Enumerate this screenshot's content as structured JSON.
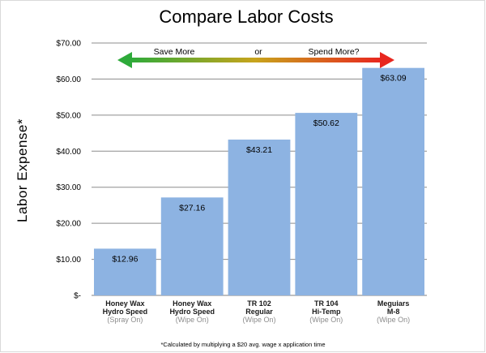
{
  "chart_data": {
    "type": "bar",
    "title": "Compare Labor Costs",
    "ylabel": "Labor Expense*",
    "xlabel": "",
    "ylim": [
      0,
      70
    ],
    "yticks": [
      0,
      10,
      20,
      30,
      40,
      50,
      60,
      70
    ],
    "ytick_labels": [
      "$-",
      "$10.00",
      "$20.00",
      "$30.00",
      "$40.00",
      "$50.00",
      "$60.00",
      "$70.00"
    ],
    "categories": [
      {
        "line1": "Honey Wax",
        "line2": "Hydro Speed",
        "method": "(Spray On)"
      },
      {
        "line1": "Honey Wax",
        "line2": "Hydro Speed",
        "method": "(Wipe On)"
      },
      {
        "line1": "TR 102",
        "line2": "Regular",
        "method": "(Wipe On)"
      },
      {
        "line1": "TR 104",
        "line2": "Hi-Temp",
        "method": "(Wipe On)"
      },
      {
        "line1": "Meguiars",
        "line2": "M-8",
        "method": "(Wipe On)"
      }
    ],
    "values": [
      12.96,
      27.16,
      43.21,
      50.62,
      63.09
    ],
    "data_labels": [
      "$12.96",
      "$27.16",
      "$43.21",
      "$50.62",
      "$63.09"
    ],
    "bar_color": "#8db3e2",
    "grid": "horizontal",
    "legend": "none",
    "annotation": {
      "left": "Save More",
      "middle": "or",
      "right": "Spend More?",
      "arrow_colors": [
        "#2eaa3a",
        "#e8271f"
      ]
    },
    "footnote": "*Calculated by multiplying a $20 avg. wage x application time"
  }
}
